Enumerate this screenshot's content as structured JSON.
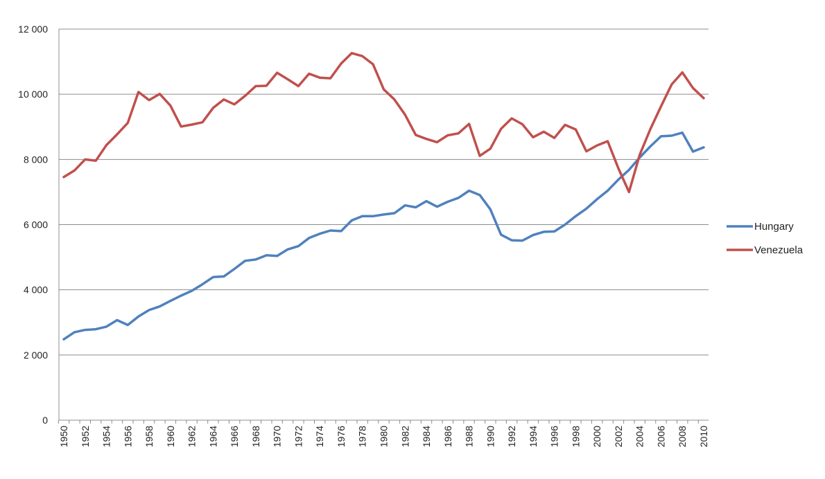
{
  "chart_data": {
    "type": "line",
    "title": "",
    "xlabel": "",
    "ylabel": "",
    "x": [
      1950,
      1951,
      1952,
      1953,
      1954,
      1955,
      1956,
      1957,
      1958,
      1959,
      1960,
      1961,
      1962,
      1963,
      1964,
      1965,
      1966,
      1967,
      1968,
      1969,
      1970,
      1971,
      1972,
      1973,
      1974,
      1975,
      1976,
      1977,
      1978,
      1979,
      1980,
      1981,
      1982,
      1983,
      1984,
      1985,
      1986,
      1987,
      1988,
      1989,
      1990,
      1991,
      1992,
      1993,
      1994,
      1995,
      1996,
      1997,
      1998,
      1999,
      2000,
      2001,
      2002,
      2003,
      2004,
      2005,
      2006,
      2007,
      2008,
      2009,
      2010
    ],
    "x_tick_labels": [
      "1950",
      "1952",
      "1954",
      "1956",
      "1958",
      "1960",
      "1962",
      "1964",
      "1966",
      "1968",
      "1970",
      "1972",
      "1974",
      "1976",
      "1978",
      "1980",
      "1982",
      "1984",
      "1986",
      "1988",
      "1990",
      "1992",
      "1994",
      "1996",
      "1998",
      "2000",
      "2002",
      "2004",
      "2006",
      "2008",
      "2010"
    ],
    "y_ticks": [
      0,
      2000,
      4000,
      6000,
      8000,
      10000,
      12000
    ],
    "y_tick_labels": [
      "0",
      "2 000",
      "4 000",
      "6 000",
      "8 000",
      "10 000",
      "12 000"
    ],
    "ylim": [
      0,
      12000
    ],
    "grid": "horizontal",
    "legend_position": "right",
    "series": [
      {
        "name": "Hungary",
        "color": "#4f81bd",
        "values": [
          2480,
          2700,
          2770,
          2790,
          2870,
          3070,
          2920,
          3180,
          3380,
          3490,
          3660,
          3820,
          3970,
          4170,
          4390,
          4410,
          4640,
          4890,
          4930,
          5060,
          5040,
          5240,
          5340,
          5590,
          5720,
          5820,
          5800,
          6130,
          6260,
          6260,
          6310,
          6350,
          6590,
          6530,
          6720,
          6550,
          6700,
          6820,
          7040,
          6910,
          6470,
          5690,
          5520,
          5510,
          5680,
          5780,
          5790,
          6000,
          6260,
          6490,
          6780,
          7040,
          7380,
          7680,
          8060,
          8400,
          8710,
          8730,
          8820,
          8240,
          8370
        ]
      },
      {
        "name": "Venezuela",
        "color": "#c0504d",
        "values": [
          7460,
          7660,
          8000,
          7960,
          8440,
          8770,
          9120,
          10070,
          9820,
          10010,
          9650,
          9010,
          9070,
          9140,
          9580,
          9840,
          9690,
          9950,
          10250,
          10260,
          10660,
          10460,
          10250,
          10630,
          10510,
          10490,
          10940,
          11260,
          11170,
          10920,
          10150,
          9840,
          9370,
          8750,
          8630,
          8530,
          8740,
          8800,
          9090,
          8110,
          8330,
          8940,
          9260,
          9080,
          8680,
          8850,
          8660,
          9060,
          8920,
          8250,
          8430,
          8560,
          7730,
          7000,
          8140,
          8930,
          9630,
          10300,
          10670,
          10190,
          9880
        ]
      }
    ]
  }
}
